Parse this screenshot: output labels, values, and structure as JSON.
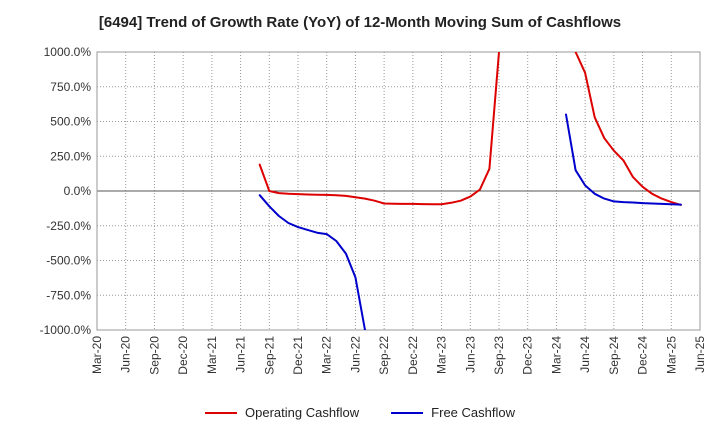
{
  "chart_data": {
    "type": "line",
    "title": "[6494]  Trend of Growth Rate (YoY) of 12-Month Moving Sum of Cashflows",
    "ylim": [
      -1000,
      1000
    ],
    "y_ticks": [
      1000,
      750,
      500,
      250,
      0,
      -250,
      -500,
      -750,
      -1000
    ],
    "y_tick_labels": [
      "1000.0%",
      "750.0%",
      "500.0%",
      "250.0%",
      "0.0%",
      "-250.0%",
      "-500.0%",
      "-750.0%",
      "-1000.0%"
    ],
    "x_tick_labels": [
      "Mar-20",
      "Jun-20",
      "Sep-20",
      "Dec-20",
      "Mar-21",
      "Jun-21",
      "Sep-21",
      "Dec-21",
      "Mar-22",
      "Jun-22",
      "Sep-22",
      "Dec-22",
      "Mar-23",
      "Jun-23",
      "Sep-23",
      "Dec-23",
      "Mar-24",
      "Jun-24",
      "Sep-24",
      "Dec-24",
      "Mar-25",
      "Jun-25"
    ],
    "grid": true,
    "legend_position": "bottom",
    "series": [
      {
        "name": "Operating Cashflow",
        "color": "#dd0000",
        "segments": [
          [
            [
              "2021-08",
              190
            ],
            [
              "2021-09",
              0
            ],
            [
              "2021-10",
              -15
            ],
            [
              "2021-11",
              -20
            ],
            [
              "2021-12",
              -22
            ],
            [
              "2022-01",
              -25
            ],
            [
              "2022-02",
              -27
            ],
            [
              "2022-03",
              -28
            ],
            [
              "2022-04",
              -30
            ],
            [
              "2022-05",
              -35
            ],
            [
              "2022-06",
              -45
            ],
            [
              "2022-07",
              -55
            ],
            [
              "2022-08",
              -70
            ],
            [
              "2022-09",
              -90
            ],
            [
              "2022-10",
              -92
            ],
            [
              "2022-11",
              -93
            ],
            [
              "2022-12",
              -93
            ],
            [
              "2023-01",
              -94
            ],
            [
              "2023-02",
              -95
            ],
            [
              "2023-03",
              -95
            ],
            [
              "2023-04",
              -85
            ],
            [
              "2023-05",
              -70
            ],
            [
              "2023-06",
              -40
            ],
            [
              "2023-07",
              10
            ],
            [
              "2023-08",
              160
            ],
            [
              "2023-09",
              1000
            ]
          ],
          [
            [
              "2024-05",
              1000
            ],
            [
              "2024-06",
              850
            ],
            [
              "2024-07",
              530
            ],
            [
              "2024-08",
              380
            ],
            [
              "2024-09",
              290
            ],
            [
              "2024-10",
              220
            ],
            [
              "2024-11",
              100
            ],
            [
              "2024-12",
              30
            ],
            [
              "2025-01",
              -20
            ],
            [
              "2025-02",
              -55
            ],
            [
              "2025-03",
              -80
            ],
            [
              "2025-04",
              -100
            ]
          ]
        ]
      },
      {
        "name": "Free Cashflow",
        "color": "#0000cc",
        "segments": [
          [
            [
              "2021-08",
              -30
            ],
            [
              "2021-09",
              -110
            ],
            [
              "2021-10",
              -180
            ],
            [
              "2021-11",
              -230
            ],
            [
              "2021-12",
              -260
            ],
            [
              "2022-01",
              -280
            ],
            [
              "2022-02",
              -300
            ],
            [
              "2022-03",
              -310
            ],
            [
              "2022-04",
              -360
            ],
            [
              "2022-05",
              -450
            ],
            [
              "2022-06",
              -620
            ],
            [
              "2022-07",
              -1000
            ]
          ],
          [
            [
              "2024-04",
              550
            ],
            [
              "2024-05",
              150
            ],
            [
              "2024-06",
              40
            ],
            [
              "2024-07",
              -20
            ],
            [
              "2024-08",
              -55
            ],
            [
              "2024-09",
              -75
            ],
            [
              "2024-10",
              -80
            ],
            [
              "2024-11",
              -83
            ],
            [
              "2024-12",
              -87
            ],
            [
              "2025-01",
              -90
            ],
            [
              "2025-02",
              -93
            ],
            [
              "2025-03",
              -96
            ],
            [
              "2025-04",
              -98
            ]
          ]
        ]
      }
    ]
  }
}
